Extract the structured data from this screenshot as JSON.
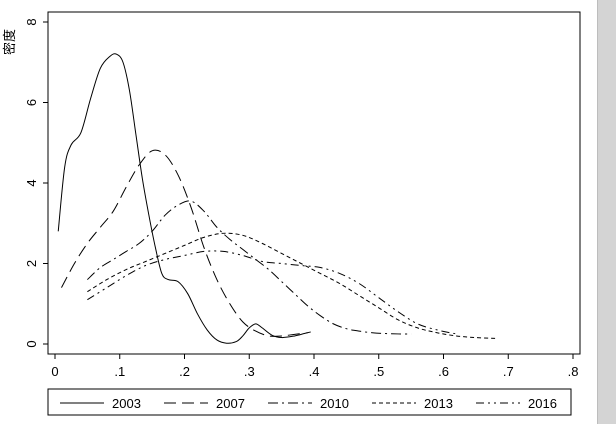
{
  "chart_data": {
    "type": "line",
    "title": "",
    "xlabel": "",
    "ylabel": "密度",
    "xlim": [
      -0.01,
      0.8
    ],
    "ylim": [
      -0.25,
      8.2
    ],
    "x_ticks": [
      0,
      0.1,
      0.2,
      0.3,
      0.4,
      0.5,
      0.6,
      0.7,
      0.8
    ],
    "x_tick_labels": [
      "0",
      ".1",
      ".2",
      ".3",
      ".4",
      ".5",
      ".6",
      ".7",
      ".8"
    ],
    "y_ticks": [
      0,
      2,
      4,
      6,
      8
    ],
    "y_tick_labels": [
      "0",
      "2",
      "4",
      "6",
      "8"
    ],
    "grid": false,
    "legend_position": "bottom",
    "series": [
      {
        "name": "2003",
        "x": [
          0.005,
          0.015,
          0.025,
          0.04,
          0.055,
          0.07,
          0.085,
          0.095,
          0.105,
          0.115,
          0.125,
          0.135,
          0.145,
          0.155,
          0.165,
          0.175,
          0.19,
          0.205,
          0.22,
          0.235,
          0.25,
          0.265,
          0.28,
          0.29,
          0.3,
          0.31,
          0.32,
          0.335,
          0.35,
          0.37,
          0.385,
          0.395
        ],
        "y": [
          2.8,
          4.4,
          4.95,
          5.25,
          6.1,
          6.85,
          7.15,
          7.2,
          7.0,
          6.3,
          5.2,
          4.1,
          3.2,
          2.4,
          1.75,
          1.6,
          1.55,
          1.25,
          0.75,
          0.35,
          0.1,
          0.02,
          0.06,
          0.2,
          0.4,
          0.5,
          0.4,
          0.22,
          0.16,
          0.2,
          0.26,
          0.3
        ]
      },
      {
        "name": "2007",
        "x": [
          0.01,
          0.03,
          0.05,
          0.07,
          0.09,
          0.11,
          0.13,
          0.15,
          0.17,
          0.19,
          0.21,
          0.23,
          0.25,
          0.27,
          0.29,
          0.31,
          0.33,
          0.35,
          0.37,
          0.39
        ],
        "y": [
          1.4,
          2.0,
          2.5,
          2.9,
          3.3,
          3.9,
          4.45,
          4.8,
          4.7,
          4.2,
          3.4,
          2.4,
          1.6,
          1.0,
          0.55,
          0.32,
          0.2,
          0.2,
          0.24,
          0.28
        ]
      },
      {
        "name": "2010",
        "x": [
          0.05,
          0.07,
          0.09,
          0.11,
          0.13,
          0.15,
          0.17,
          0.19,
          0.21,
          0.23,
          0.25,
          0.27,
          0.29,
          0.31,
          0.33,
          0.35,
          0.37,
          0.39,
          0.41,
          0.43,
          0.45,
          0.47,
          0.49,
          0.51,
          0.53,
          0.55
        ],
        "y": [
          1.6,
          1.9,
          2.1,
          2.3,
          2.5,
          2.8,
          3.2,
          3.45,
          3.55,
          3.3,
          2.9,
          2.6,
          2.35,
          2.1,
          1.85,
          1.55,
          1.25,
          0.95,
          0.7,
          0.5,
          0.38,
          0.32,
          0.28,
          0.26,
          0.25,
          0.25
        ]
      },
      {
        "name": "2013",
        "x": [
          0.05,
          0.08,
          0.11,
          0.14,
          0.17,
          0.2,
          0.23,
          0.26,
          0.29,
          0.32,
          0.35,
          0.38,
          0.41,
          0.44,
          0.47,
          0.5,
          0.53,
          0.56,
          0.59,
          0.62,
          0.65,
          0.68
        ],
        "y": [
          1.3,
          1.6,
          1.85,
          2.05,
          2.25,
          2.45,
          2.65,
          2.75,
          2.7,
          2.5,
          2.25,
          2.0,
          1.75,
          1.5,
          1.2,
          0.9,
          0.6,
          0.4,
          0.28,
          0.2,
          0.16,
          0.14
        ]
      },
      {
        "name": "2016",
        "x": [
          0.05,
          0.08,
          0.11,
          0.14,
          0.17,
          0.2,
          0.23,
          0.26,
          0.29,
          0.32,
          0.35,
          0.38,
          0.41,
          0.44,
          0.47,
          0.5,
          0.53,
          0.56,
          0.59,
          0.62
        ],
        "y": [
          1.1,
          1.4,
          1.7,
          1.95,
          2.1,
          2.2,
          2.3,
          2.3,
          2.2,
          2.05,
          2.0,
          1.95,
          1.9,
          1.75,
          1.5,
          1.15,
          0.8,
          0.5,
          0.35,
          0.25
        ]
      }
    ]
  },
  "styles": {
    "line_color": "#000000",
    "frame_color": "#000000",
    "background": "#ffffff",
    "scrollbar_color": "#d4d4d4"
  }
}
